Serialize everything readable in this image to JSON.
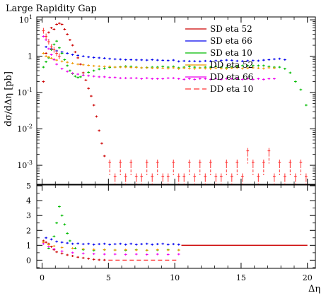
{
  "chart_data": {
    "type": "scatter",
    "title": "Large Rapidity Gap",
    "xlabel": "Δη",
    "ylabel": "dσ/dΔη [pb]",
    "xlim": [
      -0.4,
      20.6
    ],
    "ylim": [
      0.0003,
      12
    ],
    "ylog": true,
    "xticks": [
      "0",
      "5",
      "10",
      "15",
      "20"
    ],
    "yticks_main": [
      "10^{1}",
      "1",
      "10^{-1}",
      "10^{-2}",
      "10^{-3}"
    ],
    "ratio_ylim": [
      -0.55,
      5.05
    ],
    "ratio_yticks": [
      "5",
      "4",
      "3",
      "2",
      "1",
      "0"
    ],
    "legend_position": "top-right",
    "series": [
      {
        "name": "SD eta 52",
        "color": "#cc0000",
        "dash": "none",
        "x": [
          0.1,
          0.3,
          0.5,
          0.7,
          0.9,
          1.1,
          1.3,
          1.5,
          1.7,
          1.9,
          2.1,
          2.3,
          2.5,
          2.7,
          2.9,
          3.1,
          3.3,
          3.5,
          3.7,
          3.9,
          4.1,
          4.3,
          4.5,
          4.7
        ],
        "y": [
          0.2,
          1.2,
          4.5,
          6,
          5.5,
          7.5,
          8,
          7.5,
          5.5,
          4,
          2.8,
          2,
          1.3,
          0.9,
          0.6,
          0.35,
          0.22,
          0.13,
          0.08,
          0.045,
          0.022,
          0.009,
          0.004,
          0.0018
        ]
      },
      {
        "name": "SD eta 66",
        "color": "#0000ee",
        "dash": "none",
        "x": [
          0.3,
          0.7,
          1.1,
          1.5,
          1.9,
          2.3,
          2.7,
          3.1,
          3.5,
          3.9,
          4.3,
          4.7,
          5.1,
          5.5,
          5.9,
          6.3,
          6.7,
          7.1,
          7.5,
          7.9,
          8.3,
          8.7,
          9.1,
          9.5,
          9.9,
          10.3,
          10.7,
          11.1,
          11.5,
          11.9,
          12.3,
          12.7,
          13.1,
          13.5,
          13.9,
          14.3,
          14.7,
          15.1,
          15.5,
          15.9,
          16.3,
          16.7,
          17.1,
          17.5,
          17.9,
          18.3
        ],
        "y": [
          1.8,
          1.6,
          1.4,
          1.3,
          1.2,
          1.1,
          1.05,
          1.0,
          0.95,
          0.92,
          0.9,
          0.88,
          0.85,
          0.83,
          0.82,
          0.8,
          0.8,
          0.79,
          0.79,
          0.78,
          0.8,
          0.78,
          0.77,
          0.76,
          0.78,
          0.72,
          0.74,
          0.73,
          0.73,
          0.72,
          0.74,
          0.73,
          0.75,
          0.76,
          0.78,
          0.77,
          0.74,
          0.73,
          0.75,
          0.76,
          0.75,
          0.78,
          0.8,
          0.83,
          0.85,
          0.8
        ]
      },
      {
        "name": "SD eta 10",
        "color": "#00bb00",
        "dash": "none",
        "x": [
          0.1,
          0.3,
          0.5,
          0.7,
          0.9,
          1.1,
          1.3,
          1.5,
          1.7,
          1.9,
          2.1,
          2.3,
          2.5,
          2.7,
          2.9,
          3.1,
          3.5,
          3.9,
          4.3,
          4.7,
          5.1,
          5.5,
          5.9,
          6.3,
          6.7,
          7.1,
          7.5,
          7.9,
          8.3,
          8.7,
          9.1,
          9.5,
          9.9,
          10.3,
          10.7,
          11.1,
          11.5,
          11.9,
          12.3,
          12.7,
          13.1,
          13.5,
          13.9,
          14.3,
          14.7,
          15.1,
          15.5,
          15.9,
          16.3,
          16.7,
          17.1,
          17.5,
          17.9,
          18.3,
          18.7,
          19.1,
          19.5,
          19.9
        ],
        "y": [
          0.5,
          0.7,
          0.9,
          1.5,
          2.1,
          2.6,
          1.7,
          1.2,
          0.8,
          0.55,
          0.4,
          0.33,
          0.28,
          0.26,
          0.27,
          0.3,
          0.36,
          0.4,
          0.44,
          0.46,
          0.49,
          0.5,
          0.51,
          0.53,
          0.52,
          0.5,
          0.48,
          0.49,
          0.5,
          0.5,
          0.52,
          0.5,
          0.52,
          0.48,
          0.5,
          0.52,
          0.5,
          0.48,
          0.5,
          0.5,
          0.52,
          0.5,
          0.48,
          0.5,
          0.52,
          0.55,
          0.55,
          0.55,
          0.55,
          0.55,
          0.52,
          0.5,
          0.5,
          0.45,
          0.35,
          0.2,
          0.12,
          0.045
        ]
      },
      {
        "name": "DD eta 52",
        "color": "#ee9900",
        "dash": "none",
        "x": [
          0.1,
          0.3,
          0.5,
          0.7,
          0.9,
          1.1,
          1.5,
          1.9,
          2.3,
          2.7,
          3.1,
          3.5,
          3.9,
          4.3,
          4.7,
          5.1,
          5.5,
          5.9,
          6.3,
          6.7,
          7.1,
          7.5,
          7.9,
          8.3,
          8.7,
          9.1,
          9.5,
          9.9,
          10.3,
          10.7,
          11.1,
          11.5,
          11.9,
          12.3,
          12.7,
          13.1,
          13.5,
          13.9,
          14.3,
          14.7,
          15.1,
          15.5,
          15.9,
          16.3,
          16.7,
          17.1,
          17.5
        ],
        "y": [
          1.2,
          1.0,
          0.95,
          0.88,
          0.82,
          0.78,
          0.72,
          0.68,
          0.64,
          0.6,
          0.58,
          0.56,
          0.54,
          0.53,
          0.52,
          0.52,
          0.5,
          0.5,
          0.5,
          0.49,
          0.49,
          0.48,
          0.48,
          0.47,
          0.47,
          0.47,
          0.46,
          0.48,
          0.45,
          0.47,
          0.46,
          0.45,
          0.47,
          0.46,
          0.45,
          0.47,
          0.46,
          0.45,
          0.47,
          0.48,
          0.46,
          0.47,
          0.48,
          0.47,
          0.46,
          0.48,
          0.47
        ]
      },
      {
        "name": "DD eta 66",
        "color": "#ee00ee",
        "dash": "none",
        "x": [
          0.1,
          0.3,
          0.5,
          0.7,
          0.9,
          1.1,
          1.5,
          1.9,
          2.3,
          2.7,
          3.1,
          3.5,
          3.9,
          4.3,
          4.7,
          5.1,
          5.5,
          5.9,
          6.3,
          6.7,
          7.1,
          7.5,
          7.9,
          8.3,
          8.7,
          9.1,
          9.5,
          9.9,
          10.3,
          10.7,
          11.1,
          11.5,
          11.9,
          12.3,
          12.7,
          13.1,
          13.5,
          13.9,
          14.3,
          14.7,
          15.1,
          15.5,
          15.9,
          16.3,
          16.7,
          17.1,
          17.5
        ],
        "y": [
          3.5,
          2.8,
          1.6,
          1.1,
          0.8,
          0.6,
          0.45,
          0.38,
          0.34,
          0.32,
          0.3,
          0.29,
          0.28,
          0.27,
          0.27,
          0.26,
          0.26,
          0.25,
          0.25,
          0.25,
          0.25,
          0.24,
          0.25,
          0.24,
          0.24,
          0.24,
          0.25,
          0.25,
          0.24,
          0.23,
          0.24,
          0.23,
          0.24,
          0.24,
          0.23,
          0.24,
          0.23,
          0.24,
          0.24,
          0.24,
          0.23,
          0.24,
          0.23,
          0.24,
          0.23,
          0.24,
          0.24
        ]
      },
      {
        "name": "DD eta 10",
        "color": "#ff3333",
        "dash": "8,4",
        "x": [
          0.1,
          0.3,
          0.5,
          0.7,
          0.9,
          1.1,
          1.3,
          5.1,
          5.5,
          5.9,
          6.3,
          6.7,
          7.1,
          7.5,
          7.9,
          8.3,
          8.7,
          9.1,
          9.5,
          9.9,
          10.3,
          10.7,
          11.1,
          11.5,
          11.9,
          12.3,
          12.7,
          13.1,
          13.5,
          13.9,
          14.3,
          14.7,
          15.1,
          15.5,
          15.9,
          16.3,
          16.7,
          17.1,
          17.5,
          17.9,
          18.3,
          18.7,
          19.1,
          19.5,
          19.9
        ],
        "y": [
          5,
          3.5,
          2.5,
          1.8,
          1.5,
          1.2,
          1.0,
          0.0012,
          0.0005,
          0.0012,
          0.0005,
          0.0012,
          0.0005,
          0.0005,
          0.0012,
          0.0005,
          0.0012,
          0.0005,
          0.0005,
          0.0012,
          0.0005,
          0.0005,
          0.0012,
          0.0005,
          0.0012,
          0.0005,
          0.0012,
          0.0005,
          0.0005,
          0.0012,
          0.0005,
          0.0012,
          0.0005,
          0.0025,
          0.0012,
          0.0005,
          0.0012,
          0.0025,
          0.0005,
          0.0012,
          0.0005,
          0.0012,
          0.0005,
          0.0012,
          0.0005
        ],
        "ratio": [
          0.0
        ]
      },
      {
        "name": "ratio SD eta 52",
        "color": "#cc0000",
        "dash": "none",
        "x": [
          0.1,
          0.3,
          0.5,
          0.7,
          0.9,
          1.1,
          1.5,
          1.9,
          2.3,
          2.7,
          3.1,
          3.5,
          3.9,
          4.3,
          4.7
        ],
        "y": [
          1.3,
          1.2,
          1.1,
          0.9,
          0.7,
          0.55,
          0.45,
          0.35,
          0.28,
          0.2,
          0.15,
          0.1,
          0.05,
          0.02,
          0.01
        ]
      },
      {
        "name": "ratio SD eta 10",
        "color": "#00bb00",
        "dash": "none",
        "x": [
          0.5,
          0.9,
          1.1,
          1.3,
          1.5,
          1.7,
          1.9,
          2.1,
          2.5,
          3.1,
          3.9,
          4.7,
          5.5,
          6.3,
          7.1,
          7.9,
          8.7,
          9.5,
          10.3
        ],
        "y": [
          0.8,
          1.6,
          2.5,
          3.6,
          3.0,
          2.4,
          1.8,
          1.3,
          0.8,
          0.7,
          0.65,
          0.7,
          0.68,
          0.66,
          0.7,
          0.66,
          0.68,
          0.7,
          0.68
        ]
      },
      {
        "name": "ratio SD eta 66",
        "color": "#0000ee",
        "dash": "none",
        "x": [
          0.3,
          0.7,
          1.1,
          1.5,
          1.9,
          2.3,
          2.7,
          3.1,
          3.5,
          3.9,
          4.3,
          4.7,
          5.1,
          5.5,
          5.9,
          6.3,
          6.7,
          7.1,
          7.5,
          7.9,
          8.3,
          8.7,
          9.1,
          9.5,
          9.9,
          10.3
        ],
        "y": [
          1.5,
          1.4,
          1.25,
          1.2,
          1.15,
          1.1,
          1.12,
          1.08,
          1.1,
          1.05,
          1.08,
          1.1,
          1.05,
          1.08,
          1.1,
          1.05,
          1.1,
          1.05,
          1.08,
          1.1,
          1.05,
          1.08,
          1.1,
          1.05,
          1.08,
          1.05
        ]
      },
      {
        "name": "ratio DD eta 52",
        "color": "#ee9900",
        "dash": "none",
        "x": [
          0.1,
          0.5,
          0.9,
          1.5,
          2.3,
          3.1,
          3.9,
          4.7,
          5.5,
          6.3,
          7.1,
          7.9,
          8.7,
          9.5,
          10.3
        ],
        "y": [
          1.2,
          1.05,
          0.95,
          0.85,
          0.8,
          0.75,
          0.72,
          0.7,
          0.68,
          0.7,
          0.68,
          0.67,
          0.7,
          0.68,
          0.68
        ]
      },
      {
        "name": "ratio DD eta 66",
        "color": "#ee00ee",
        "dash": "none",
        "x": [
          0.1,
          0.5,
          0.9,
          1.5,
          2.3,
          3.1,
          3.9,
          4.7,
          5.5,
          6.3,
          7.1,
          7.9,
          8.7,
          9.5,
          10.3
        ],
        "y": [
          1.1,
          0.9,
          0.75,
          0.6,
          0.5,
          0.45,
          0.42,
          0.4,
          0.4,
          0.38,
          0.4,
          0.38,
          0.4,
          0.38,
          0.4
        ]
      },
      {
        "name": "ratio reference",
        "color": "#cc0000",
        "dash": "none",
        "x": [
          10.5,
          20.0
        ],
        "y": [
          1.0,
          1.0
        ]
      },
      {
        "name": "ratio DD eta 10",
        "color": "#ff3333",
        "dash": "6,4",
        "x": [
          5.0,
          10.3
        ],
        "y": [
          0.0,
          0.0
        ]
      }
    ]
  }
}
